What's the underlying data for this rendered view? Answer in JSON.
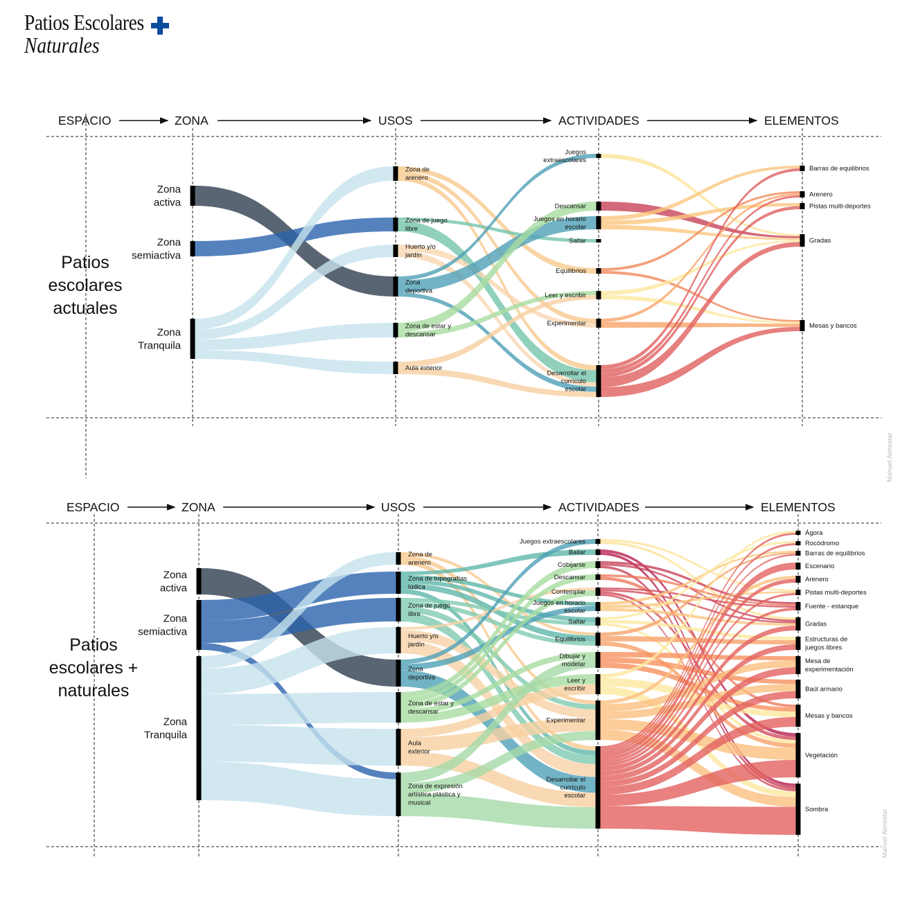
{
  "logo": {
    "line1": "Patios Escolares",
    "line2": "Naturales",
    "plus_color": "#0d4c9c"
  },
  "watermark": "Manuel Alméstar",
  "diagrams": [
    {
      "headers": {
        "espacio": "ESPACIO",
        "zona": "ZONA",
        "usos": "USOS",
        "actividades": "ACTIVIDADES",
        "elementos": "ELEMENTOS"
      },
      "space_label": "Patios\nescolares\nactuales",
      "zones": [
        {
          "id": "z_act",
          "label": "Zona\nactiva",
          "color": "#2f3e4f"
        },
        {
          "id": "z_semi",
          "label": "Zona\nsemiactiva",
          "color": "#2a63ad"
        },
        {
          "id": "z_tranq",
          "label": "Zona\nTranquila",
          "color": "#c6e2ee"
        }
      ],
      "usos": [
        {
          "id": "u_aren",
          "label": "Zona de\narenero",
          "color": "#f7c98f"
        },
        {
          "id": "u_libre",
          "label": "Zona de juego\nlibre",
          "color": "#74c4ac"
        },
        {
          "id": "u_huerto",
          "label": "Huerto y/o\njardín",
          "color": "#f8d6b0"
        },
        {
          "id": "u_dep",
          "label": "Zona\ndeportiva",
          "color": "#4fa0b6"
        },
        {
          "id": "u_estar",
          "label": "Zona de estar y\ndescansar",
          "color": "#a8dca0"
        },
        {
          "id": "u_aula",
          "label": "Aula exterior",
          "color": "#f8cfa0"
        }
      ],
      "actividades": [
        {
          "id": "a_extra",
          "label": "Juegos\nextraescolares",
          "color": "#fde49a"
        },
        {
          "id": "a_desc",
          "label": "Descansar",
          "color": "#c8435a"
        },
        {
          "id": "a_horario",
          "label": "Juegos en horario\nescolar",
          "color": "#fbc77f"
        },
        {
          "id": "a_saltar",
          "label": "Saltar",
          "color": "#fde9a0"
        },
        {
          "id": "a_equil",
          "label": "Equilibrios",
          "color": "#f0885a"
        },
        {
          "id": "a_leer",
          "label": "Leer y escribir",
          "color": "#fde9a0"
        },
        {
          "id": "a_exper",
          "label": "Experimentar",
          "color": "#f7a56a"
        },
        {
          "id": "a_curric",
          "label": "Desarrollar el\ncurrículo\nescolar",
          "color": "#e0605f"
        }
      ],
      "elementos": [
        {
          "id": "e_barras",
          "label": "Barras de equilibrios"
        },
        {
          "id": "e_aren",
          "label": "Arenero"
        },
        {
          "id": "e_pistas",
          "label": "Pistas multi-deportes"
        },
        {
          "id": "e_gradas",
          "label": "Gradas"
        },
        {
          "id": "e_mesas",
          "label": "Mesas y bancos"
        }
      ],
      "links": [
        [
          "z_act",
          "u_dep",
          28
        ],
        [
          "z_semi",
          "u_libre",
          20
        ],
        [
          "z_tranq",
          "u_aren",
          18
        ],
        [
          "z_tranq",
          "u_huerto",
          16
        ],
        [
          "z_tranq",
          "u_estar",
          18
        ],
        [
          "z_tranq",
          "u_aula",
          14
        ],
        [
          "u_aren",
          "a_equil",
          6
        ],
        [
          "u_aren",
          "a_exper",
          6
        ],
        [
          "u_aren",
          "a_curric",
          6
        ],
        [
          "u_libre",
          "a_saltar",
          4
        ],
        [
          "u_libre",
          "a_curric",
          14
        ],
        [
          "u_huerto",
          "a_exper",
          5
        ],
        [
          "u_huerto",
          "a_curric",
          5
        ],
        [
          "u_dep",
          "a_extra",
          6
        ],
        [
          "u_dep",
          "a_horario",
          18
        ],
        [
          "u_dep",
          "a_curric",
          6
        ],
        [
          "u_estar",
          "a_desc",
          10
        ],
        [
          "u_estar",
          "a_leer",
          6
        ],
        [
          "u_aula",
          "a_leer",
          6
        ],
        [
          "u_aula",
          "a_curric",
          6
        ],
        [
          "a_extra",
          "e_gradas",
          5
        ],
        [
          "a_desc",
          "e_gradas",
          5
        ],
        [
          "a_horario",
          "e_barras",
          5
        ],
        [
          "a_horario",
          "e_pistas",
          5
        ],
        [
          "a_horario",
          "e_gradas",
          5
        ],
        [
          "a_equil",
          "e_aren",
          5
        ],
        [
          "a_equil",
          "e_mesas",
          5
        ],
        [
          "a_leer",
          "e_gradas",
          5
        ],
        [
          "a_leer",
          "e_mesas",
          5
        ],
        [
          "a_exper",
          "e_aren",
          5
        ],
        [
          "a_exper",
          "e_mesas",
          9
        ],
        [
          "a_curric",
          "e_barras",
          5
        ],
        [
          "a_curric",
          "e_aren",
          5
        ],
        [
          "a_curric",
          "e_pistas",
          5
        ],
        [
          "a_curric",
          "e_gradas",
          12
        ],
        [
          "a_curric",
          "e_mesas",
          12
        ]
      ]
    },
    {
      "headers": {
        "espacio": "ESPACIO",
        "zona": "ZONA",
        "usos": "USOS",
        "actividades": "ACTIVIDADES",
        "elementos": "ELEMENTOS"
      },
      "space_label": "Patios\nescolares +\nnaturales",
      "zones": [
        {
          "id": "z_act",
          "label": "Zona\nactiva",
          "color": "#2f3e4f"
        },
        {
          "id": "z_semi",
          "label": "Zona\nsemiactiva",
          "color": "#2a63ad"
        },
        {
          "id": "z_tranq",
          "label": "Zona\nTranquila",
          "color": "#c6e2ee"
        }
      ],
      "usos": [
        {
          "id": "u_aren",
          "label": "Zona de\narenero",
          "color": "#f7c98f"
        },
        {
          "id": "u_topo",
          "label": "Zona de topografías\nlúdica",
          "color": "#5fb7aa"
        },
        {
          "id": "u_libre",
          "label": "Zona de juego\nlibre",
          "color": "#7fcbb0"
        },
        {
          "id": "u_huerto",
          "label": "Huerto y/o\njardín",
          "color": "#f8d2a8"
        },
        {
          "id": "u_dep",
          "label": "Zona\ndeportiva",
          "color": "#4fa0b6"
        },
        {
          "id": "u_estar",
          "label": "Zona de estar y\ndescansar",
          "color": "#a8dca0"
        },
        {
          "id": "u_aula",
          "label": "Aula\nexterior",
          "color": "#f8cfa0"
        },
        {
          "id": "u_expr",
          "label": "Zona de expresión\nartística plástica y\nmusical",
          "color": "#a5daa8"
        }
      ],
      "actividades": [
        {
          "id": "a_extra",
          "label": "Juegos extraescolares",
          "color": "#fde49a"
        },
        {
          "id": "a_bailar",
          "label": "Bailar",
          "color": "#b8204f"
        },
        {
          "id": "a_cobij",
          "label": "Cobijarse",
          "color": "#c8435a"
        },
        {
          "id": "a_desc",
          "label": "Descansar",
          "color": "#ec7a5c"
        },
        {
          "id": "a_contem",
          "label": "Contemplar",
          "color": "#d24d5f"
        },
        {
          "id": "a_horario",
          "label": "Juegos en horario\nescolar",
          "color": "#fbc77f"
        },
        {
          "id": "a_saltar",
          "label": "Saltar",
          "color": "#fde9a0"
        },
        {
          "id": "a_equil",
          "label": "Equilibrios",
          "color": "#f6a26a"
        },
        {
          "id": "a_dibujar",
          "label": "Dibujar y\nmodelar",
          "color": "#f7915f"
        },
        {
          "id": "a_leer",
          "label": "Leer y\nescribir",
          "color": "#fde9a0"
        },
        {
          "id": "a_exper",
          "label": "Experimentar",
          "color": "#fbbf80"
        },
        {
          "id": "a_curric",
          "label": "Desarrollar el\ncurrículo\nescolar",
          "color": "#e2625f"
        }
      ],
      "elementos": [
        {
          "id": "e_agora",
          "label": "Ágora"
        },
        {
          "id": "e_roco",
          "label": "Rocódromo"
        },
        {
          "id": "e_barras",
          "label": "Barras de equilibrios"
        },
        {
          "id": "e_escen",
          "label": "Escenario"
        },
        {
          "id": "e_aren",
          "label": "Arenero"
        },
        {
          "id": "e_pistas",
          "label": "Pistas multi-deportes"
        },
        {
          "id": "e_fuente",
          "label": "Fuente - estanque"
        },
        {
          "id": "e_gradas",
          "label": "Gradas"
        },
        {
          "id": "e_estruct",
          "label": "Estructuras de\njuegos libres"
        },
        {
          "id": "e_mesaexp",
          "label": "Mesa de\nexperimentación"
        },
        {
          "id": "e_baul",
          "label": "Baúl armario"
        },
        {
          "id": "e_mesas",
          "label": "Mesas y bancos"
        },
        {
          "id": "e_veg",
          "label": "Vegetación"
        },
        {
          "id": "e_sombra",
          "label": "Sombra"
        }
      ],
      "links": [
        [
          "z_act",
          "u_dep",
          38
        ],
        [
          "z_semi",
          "u_topo",
          30
        ],
        [
          "z_semi",
          "u_libre",
          32
        ],
        [
          "z_semi",
          "u_expr",
          10
        ],
        [
          "z_tranq",
          "u_aren",
          18
        ],
        [
          "z_tranq",
          "u_huerto",
          36
        ],
        [
          "z_tranq",
          "u_estar",
          44
        ],
        [
          "z_tranq",
          "u_aula",
          52
        ],
        [
          "z_tranq",
          "u_expr",
          55
        ],
        [
          "u_aren",
          "a_equil",
          4
        ],
        [
          "u_aren",
          "a_exper",
          6
        ],
        [
          "u_aren",
          "a_curric",
          6
        ],
        [
          "u_topo",
          "a_bailar",
          5
        ],
        [
          "u_topo",
          "a_horario",
          6
        ],
        [
          "u_topo",
          "a_saltar",
          6
        ],
        [
          "u_topo",
          "a_equil",
          8
        ],
        [
          "u_topo",
          "a_curric",
          7
        ],
        [
          "u_libre",
          "a_saltar",
          5
        ],
        [
          "u_libre",
          "a_equil",
          6
        ],
        [
          "u_libre",
          "a_exper",
          8
        ],
        [
          "u_libre",
          "a_curric",
          12
        ],
        [
          "u_huerto",
          "a_contem",
          4
        ],
        [
          "u_huerto",
          "a_exper",
          14
        ],
        [
          "u_huerto",
          "a_curric",
          18
        ],
        [
          "u_dep",
          "a_extra",
          6
        ],
        [
          "u_dep",
          "a_horario",
          8
        ],
        [
          "u_dep",
          "a_curric",
          22
        ],
        [
          "u_estar",
          "a_cobij",
          8
        ],
        [
          "u_estar",
          "a_desc",
          8
        ],
        [
          "u_estar",
          "a_contem",
          8
        ],
        [
          "u_estar",
          "a_dibujar",
          8
        ],
        [
          "u_estar",
          "a_leer",
          12
        ],
        [
          "u_aula",
          "a_leer",
          12
        ],
        [
          "u_aula",
          "a_exper",
          20
        ],
        [
          "u_aula",
          "a_curric",
          20
        ],
        [
          "u_expr",
          "a_dibujar",
          14
        ],
        [
          "u_expr",
          "a_exper",
          14
        ],
        [
          "u_expr",
          "a_curric",
          30
        ],
        [
          "a_extra",
          "e_pistas",
          4
        ],
        [
          "a_extra",
          "e_gradas",
          4
        ],
        [
          "a_bailar",
          "e_veg",
          4
        ],
        [
          "a_bailar",
          "e_sombra",
          4
        ],
        [
          "a_cobij",
          "e_fuente",
          4
        ],
        [
          "a_cobij",
          "e_gradas",
          3
        ],
        [
          "a_cobij",
          "e_sombra",
          4
        ],
        [
          "a_desc",
          "e_fuente",
          3
        ],
        [
          "a_desc",
          "e_mesas",
          4
        ],
        [
          "a_contem",
          "e_fuente",
          3
        ],
        [
          "a_contem",
          "e_gradas",
          3
        ],
        [
          "a_contem",
          "e_veg",
          4
        ],
        [
          "a_contem",
          "e_sombra",
          3
        ],
        [
          "a_horario",
          "e_barras",
          4
        ],
        [
          "a_horario",
          "e_pistas",
          4
        ],
        [
          "a_horario",
          "e_gradas",
          4
        ],
        [
          "a_saltar",
          "e_roco",
          4
        ],
        [
          "a_saltar",
          "e_estruct",
          5
        ],
        [
          "a_saltar",
          "e_veg",
          4
        ],
        [
          "a_equil",
          "e_barras",
          4
        ],
        [
          "a_equil",
          "e_estruct",
          6
        ],
        [
          "a_equil",
          "e_veg",
          5
        ],
        [
          "a_dibujar",
          "e_mesaexp",
          6
        ],
        [
          "a_dibujar",
          "e_baul",
          6
        ],
        [
          "a_dibujar",
          "e_mesas",
          6
        ],
        [
          "a_leer",
          "e_agora",
          4
        ],
        [
          "a_leer",
          "e_mesas",
          8
        ],
        [
          "a_leer",
          "e_sombra",
          8
        ],
        [
          "a_exper",
          "e_aren",
          5
        ],
        [
          "a_exper",
          "e_mesaexp",
          10
        ],
        [
          "a_exper",
          "e_baul",
          10
        ],
        [
          "a_exper",
          "e_veg",
          14
        ],
        [
          "a_exper",
          "e_sombra",
          14
        ],
        [
          "a_curric",
          "e_agora",
          4
        ],
        [
          "a_curric",
          "e_roco",
          4
        ],
        [
          "a_curric",
          "e_barras",
          4
        ],
        [
          "a_curric",
          "e_escen",
          8
        ],
        [
          "a_curric",
          "e_aren",
          6
        ],
        [
          "a_curric",
          "e_pistas",
          5
        ],
        [
          "a_curric",
          "e_fuente",
          5
        ],
        [
          "a_curric",
          "e_gradas",
          8
        ],
        [
          "a_curric",
          "e_estruct",
          8
        ],
        [
          "a_curric",
          "e_mesaexp",
          10
        ],
        [
          "a_curric",
          "e_baul",
          10
        ],
        [
          "a_curric",
          "e_mesas",
          14
        ],
        [
          "a_curric",
          "e_veg",
          20
        ],
        [
          "a_curric",
          "e_sombra",
          40
        ]
      ]
    }
  ]
}
